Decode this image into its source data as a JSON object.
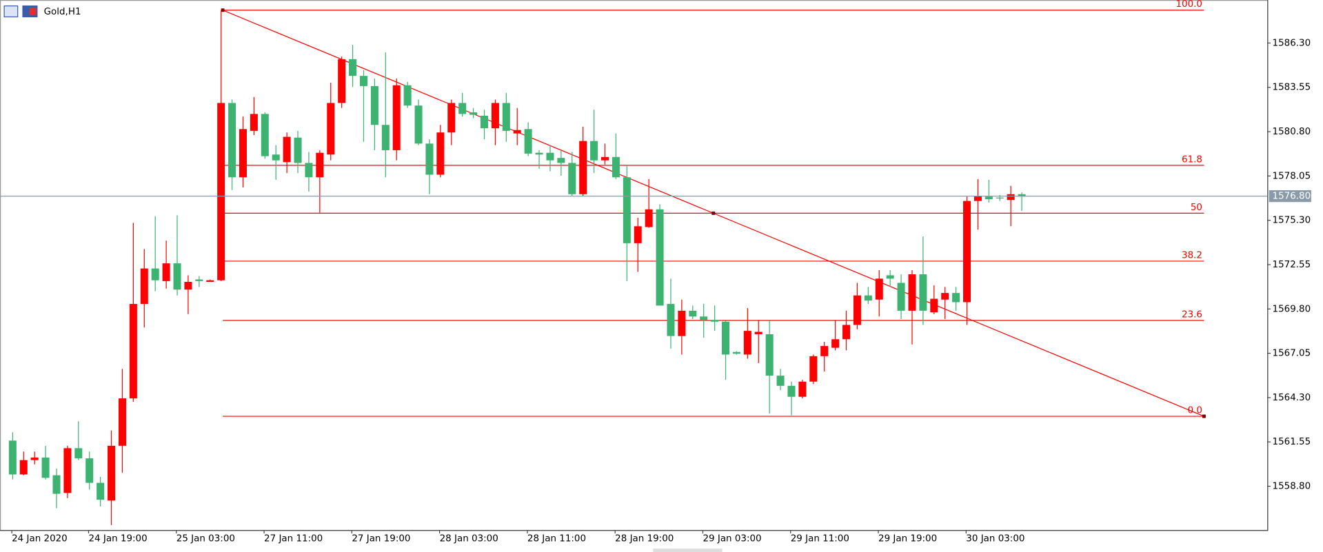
{
  "chart_data": {
    "type": "candlestick",
    "title": "Gold,H1",
    "up_color": "#ff0000",
    "down_color": "#3cb371",
    "categories": [
      "24 Jan 2020",
      null,
      null,
      null,
      null,
      null,
      null,
      "24 Jan 19:00",
      null,
      null,
      null,
      null,
      null,
      null,
      null,
      "25 Jan 03:00",
      null,
      null,
      null,
      null,
      null,
      null,
      null,
      "27 Jan 11:00",
      null,
      null,
      null,
      null,
      null,
      null,
      null,
      "27 Jan 19:00",
      null,
      null,
      null,
      null,
      null,
      null,
      null,
      "28 Jan 03:00",
      null,
      null,
      null,
      null,
      null,
      null,
      null,
      "28 Jan 11:00",
      null,
      null,
      null,
      null,
      null,
      null,
      null,
      "28 Jan 19:00",
      null,
      null,
      null,
      null,
      null,
      null,
      null,
      "29 Jan 03:00",
      null,
      null,
      null,
      null,
      null,
      null,
      null,
      "29 Jan 11:00",
      null,
      null,
      null,
      null,
      null,
      null,
      null,
      "29 Jan 19:00",
      null,
      null,
      null,
      null,
      null,
      null,
      null,
      "30 Jan 03:00",
      null,
      null,
      null,
      null,
      null
    ],
    "open": [
      1561.63,
      1559.53,
      1560.42,
      1560.58,
      1559.48,
      1558.38,
      1561.16,
      1560.53,
      1559.01,
      1557.91,
      1561.31,
      1564.25,
      1570.11,
      1572.31,
      1571.53,
      1572.63,
      1571.0,
      1571.63,
      1571.48,
      1571.58,
      1582.58,
      1577.97,
      1580.85,
      1581.9,
      1579.38,
      1578.91,
      1580.43,
      1578.86,
      1577.97,
      1579.38,
      1582.58,
      1585.3,
      1584.26,
      1583.63,
      1581.22,
      1579.65,
      1583.68,
      1582.42,
      1580.06,
      1578.13,
      1580.75,
      1582.58,
      1582.0,
      1581.79,
      1581.01,
      1582.58,
      1580.69,
      1580.96,
      1579.49,
      1579.49,
      1579.17,
      1578.86,
      1576.92,
      1580.22,
      1579.02,
      1579.23,
      1577.97,
      1573.88,
      1574.88,
      1575.98,
      1570.11,
      1568.12,
      1569.69,
      1569.33,
      1569.12,
      1569.01,
      1567.13,
      1566.97,
      1568.23,
      1568.23,
      1565.66,
      1565.03,
      1564.35,
      1565.29,
      1566.87,
      1567.39,
      1567.92,
      1568.81,
      1570.64,
      1570.38,
      1571.89,
      1571.42,
      1569.69,
      1571.95,
      1569.59,
      1570.38,
      1570.79,
      1570.22,
      1576.5,
      1576.77,
      1576.71,
      1576.56,
      1576.92
    ],
    "high": [
      1562.15,
      1560.95,
      1560.95,
      1561.31,
      1559.9,
      1561.31,
      1562.83,
      1560.95,
      1559.38,
      1562.26,
      1566.08,
      1575.14,
      1573.52,
      1575.56,
      1574.04,
      1575.61,
      1571.89,
      1571.84,
      1571.63,
      1588.34,
      1582.79,
      1581.74,
      1582.95,
      1582.0,
      1579.96,
      1580.75,
      1580.85,
      1579.54,
      1579.65,
      1583.84,
      1585.46,
      1586.19,
      1584.62,
      1584.1,
      1585.72,
      1584.1,
      1583.89,
      1582.79,
      1580.33,
      1581.22,
      1582.79,
      1583.21,
      1582.27,
      1582.16,
      1582.79,
      1583.21,
      1582.27,
      1581.38,
      1579.65,
      1579.96,
      1579.65,
      1579.54,
      1581.11,
      1582.16,
      1580.06,
      1580.69,
      1578.76,
      1575.46,
      1577.86,
      1576.29,
      1571.68,
      1570.38,
      1570.01,
      1570.12,
      1570.01,
      1569.07,
      1567.18,
      1569.85,
      1569.07,
      1569.07,
      1566.08,
      1565.29,
      1565.4,
      1566.97,
      1567.76,
      1569.07,
      1569.69,
      1571.42,
      1571.16,
      1572.21,
      1572.21,
      1571.95,
      1572.21,
      1574.3,
      1571.26,
      1571.16,
      1571.16,
      1576.77,
      1577.86,
      1577.81,
      1576.87,
      1577.44,
      1577.03
    ],
    "low": [
      1559.22,
      1559.48,
      1560.16,
      1559.22,
      1557.44,
      1558.06,
      1560.42,
      1558.59,
      1557.54,
      1556.39,
      1559.64,
      1564.04,
      1568.65,
      1570.9,
      1571.06,
      1570.64,
      1569.48,
      1571.16,
      1571.48,
      1571.53,
      1577.18,
      1577.34,
      1580.59,
      1579.12,
      1577.81,
      1578.23,
      1578.23,
      1577.08,
      1575.77,
      1579.02,
      1582.27,
      1583.57,
      1580.17,
      1579.65,
      1577.97,
      1579.02,
      1582.27,
      1579.96,
      1576.92,
      1577.97,
      1579.96,
      1581.74,
      1581.64,
      1580.33,
      1579.96,
      1580.17,
      1579.96,
      1579.28,
      1578.5,
      1578.34,
      1578.07,
      1576.82,
      1576.82,
      1578.23,
      1578.76,
      1577.86,
      1571.53,
      1572.1,
      1574.83,
      1570.01,
      1567.34,
      1566.97,
      1569.17,
      1568.02,
      1568.44,
      1565.4,
      1566.97,
      1566.71,
      1566.44,
      1563.3,
      1564.77,
      1563.2,
      1564.25,
      1565.14,
      1565.92,
      1567.23,
      1567.23,
      1568.54,
      1570.11,
      1569.33,
      1571.16,
      1569.17,
      1567.6,
      1568.81,
      1569.48,
      1569.17,
      1569.69,
      1568.81,
      1574.72,
      1576.4,
      1576.5,
      1574.93,
      1575.88
    ],
    "close": [
      1559.53,
      1560.42,
      1560.58,
      1559.32,
      1558.33,
      1561.16,
      1560.53,
      1559.01,
      1557.96,
      1561.31,
      1564.25,
      1570.11,
      1572.31,
      1571.58,
      1572.63,
      1571.0,
      1571.48,
      1571.53,
      1571.58,
      1582.58,
      1577.97,
      1580.96,
      1581.9,
      1579.28,
      1579.02,
      1580.48,
      1578.86,
      1577.97,
      1579.49,
      1582.58,
      1585.3,
      1584.26,
      1583.63,
      1581.22,
      1579.65,
      1583.68,
      1582.42,
      1580.06,
      1578.13,
      1580.75,
      1582.58,
      1581.9,
      1581.85,
      1581.01,
      1582.58,
      1580.85,
      1580.9,
      1579.44,
      1579.38,
      1579.02,
      1578.86,
      1576.92,
      1580.22,
      1579.02,
      1579.23,
      1577.97,
      1573.88,
      1574.93,
      1575.98,
      1570.01,
      1568.12,
      1569.69,
      1569.33,
      1569.12,
      1569.01,
      1566.97,
      1567.02,
      1568.44,
      1568.38,
      1565.66,
      1565.03,
      1564.35,
      1565.29,
      1566.87,
      1567.5,
      1567.92,
      1568.81,
      1570.64,
      1570.32,
      1571.68,
      1571.68,
      1569.69,
      1571.95,
      1569.69,
      1570.43,
      1570.79,
      1570.22,
      1576.5,
      1576.82,
      1576.61,
      1576.66,
      1576.92,
      1576.77
    ],
    "ylim": [
      1556.08,
      1588.97
    ],
    "yticks": [
      {
        "value": 1558.8,
        "label": "1558.80"
      },
      {
        "value": 1561.55,
        "label": "1561.55"
      },
      {
        "value": 1564.3,
        "label": "1564.30"
      },
      {
        "value": 1567.05,
        "label": "1567.05"
      },
      {
        "value": 1569.8,
        "label": "1569.80"
      },
      {
        "value": 1572.55,
        "label": "1572.55"
      },
      {
        "value": 1575.3,
        "label": "1575.30"
      },
      {
        "value": 1578.05,
        "label": "1578.05"
      },
      {
        "value": 1580.8,
        "label": "1580.80"
      },
      {
        "value": 1583.55,
        "label": "1583.55"
      },
      {
        "value": 1586.3,
        "label": "1586.30"
      }
    ],
    "current_price": {
      "value": 1576.8,
      "label": "1576.80"
    },
    "current_price_color": "#8a9aa8",
    "fibonacci": {
      "high": 1588.34,
      "low": 1563.14,
      "color": "#ff0000",
      "levels": [
        {
          "value": 0,
          "label": "0.0"
        },
        23.6,
        38.2,
        50,
        61.8,
        {
          "value": 100,
          "label": "100.0"
        }
      ]
    }
  }
}
